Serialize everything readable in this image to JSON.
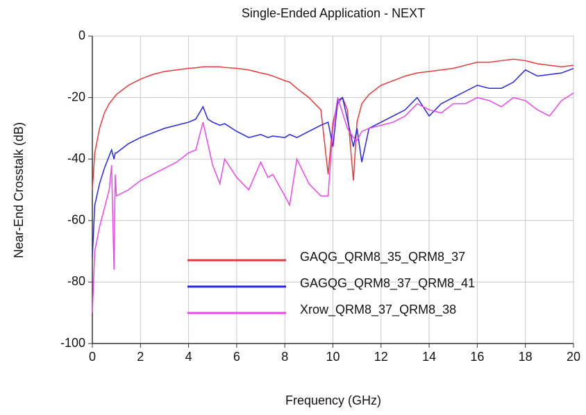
{
  "chart_data": {
    "type": "line",
    "title": "Single-Ended Application - NEXT",
    "xlabel": "Frequency (GHz)",
    "ylabel": "Near-End Crosstalk (dB)",
    "x": [
      0,
      0.1,
      0.3,
      0.5,
      0.7,
      0.8,
      0.9,
      0.95,
      1.0,
      1.5,
      2,
      2.5,
      3,
      3.5,
      4,
      4.3,
      4.6,
      4.8,
      5,
      5.3,
      5.5,
      6,
      6.5,
      7,
      7.3,
      7.5,
      8,
      8.2,
      8.5,
      9,
      9.5,
      9.8,
      10,
      10.2,
      10.4,
      10.6,
      10.85,
      11,
      11.2,
      11.5,
      12,
      12.5,
      13,
      13.5,
      14,
      14.5,
      15,
      15.5,
      16,
      16.5,
      17,
      17.5,
      18,
      18.5,
      19,
      19.5,
      20
    ],
    "series": [
      {
        "name": "GAQG_QRM8_35_QRM8_37",
        "color": "#e8383a",
        "values": [
          -50,
          -38,
          -30,
          -25,
          -22,
          -21,
          -20,
          -19.5,
          -19,
          -16,
          -14,
          -12.5,
          -11.5,
          -11,
          -10.5,
          -10.3,
          -10,
          -10,
          -10,
          -10,
          -10.2,
          -10.5,
          -11,
          -12,
          -12.5,
          -13,
          -14.5,
          -15,
          -17,
          -20,
          -24,
          -45,
          -28,
          -22,
          -20,
          -24,
          -47,
          -28,
          -22,
          -19,
          -16,
          -14.5,
          -13,
          -12,
          -11.5,
          -11,
          -10.5,
          -9.5,
          -8.5,
          -8.5,
          -8,
          -7.5,
          -8,
          -9,
          -9.5,
          -10,
          -9.5
        ]
      },
      {
        "name": "GAGQG_QRM8_37_QRM8_41",
        "color": "#2424ee",
        "values": [
          -72,
          -55,
          -48,
          -43,
          -39,
          -37,
          -40,
          -38,
          -38,
          -35,
          -33,
          -31.5,
          -30,
          -29,
          -28,
          -27,
          -23,
          -27,
          -28,
          -29,
          -28.5,
          -31,
          -33,
          -32,
          -33,
          -32.5,
          -33,
          -32,
          -33,
          -31,
          -29,
          -28,
          -36,
          -21,
          -20,
          -27,
          -36,
          -30,
          -41,
          -30,
          -28,
          -26,
          -24,
          -20,
          -26,
          -22,
          -20,
          -18,
          -16,
          -17,
          -17,
          -15,
          -11,
          -13,
          -12.5,
          -12,
          -10.5
        ]
      },
      {
        "name": "Xrow_QRM8_37_QRM8_38",
        "color": "#ee44ee",
        "values": [
          -90,
          -70,
          -62,
          -56,
          -50,
          -42,
          -76,
          -45,
          -52,
          -50,
          -47,
          -45,
          -43,
          -41,
          -38,
          -37,
          -28,
          -35,
          -42,
          -48,
          -40,
          -46,
          -50,
          -41,
          -46,
          -45,
          -52,
          -55,
          -40,
          -48,
          -52,
          -52,
          -30,
          -20,
          -25,
          -30,
          -33,
          -34,
          -31,
          -30,
          -29,
          -28,
          -26,
          -22,
          -24,
          -25,
          -22,
          -22,
          -20,
          -21,
          -23,
          -20,
          -21,
          -24,
          -26,
          -21,
          -18.5
        ]
      }
    ],
    "xlim": [
      0,
      20
    ],
    "xticks": [
      0,
      2,
      4,
      6,
      8,
      10,
      12,
      14,
      16,
      18,
      20
    ],
    "ylim": [
      -100,
      0
    ],
    "yticks": [
      0,
      -20,
      -40,
      -60,
      -80,
      -100
    ],
    "grid": true,
    "legend": "lower right"
  }
}
